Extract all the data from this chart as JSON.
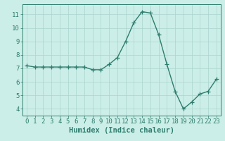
{
  "x": [
    0,
    1,
    2,
    3,
    4,
    5,
    6,
    7,
    8,
    9,
    10,
    11,
    12,
    13,
    14,
    15,
    16,
    17,
    18,
    19,
    20,
    21,
    22,
    23
  ],
  "y": [
    7.2,
    7.1,
    7.1,
    7.1,
    7.1,
    7.1,
    7.1,
    7.1,
    6.9,
    6.9,
    7.3,
    7.8,
    9.0,
    10.4,
    11.2,
    11.1,
    9.5,
    7.3,
    5.3,
    4.0,
    4.5,
    5.1,
    5.3,
    6.2
  ],
  "line_color": "#2e7d6e",
  "bg_color": "#cceee8",
  "grid_color": "#aad4ce",
  "xlabel": "Humidex (Indice chaleur)",
  "xlim": [
    -0.5,
    23.5
  ],
  "ylim": [
    3.5,
    11.75
  ],
  "yticks": [
    4,
    5,
    6,
    7,
    8,
    9,
    10,
    11
  ],
  "xticks": [
    0,
    1,
    2,
    3,
    4,
    5,
    6,
    7,
    8,
    9,
    10,
    11,
    12,
    13,
    14,
    15,
    16,
    17,
    18,
    19,
    20,
    21,
    22,
    23
  ],
  "marker": "+",
  "markersize": 4,
  "linewidth": 1.0,
  "xlabel_fontsize": 7.5,
  "tick_fontsize": 6.5,
  "title_color": "#2e7d6e"
}
